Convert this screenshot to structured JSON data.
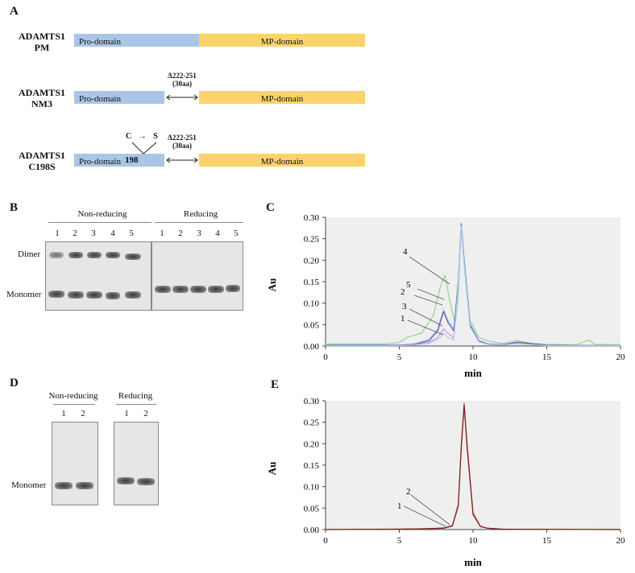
{
  "panelA": {
    "letter": "A",
    "constructs": [
      {
        "name_line1": "ADAMTS1",
        "name_line2": "PM",
        "pro_label": "Pro-domain",
        "mp_label": "MP-domain"
      },
      {
        "name_line1": "ADAMTS1",
        "name_line2": "NM3",
        "pro_label": "Pro-domain",
        "mp_label": "MP-domain",
        "deletion_line1": "Δ222-251",
        "deletion_line2": "(30aa)"
      },
      {
        "name_line1": "ADAMTS1",
        "name_line2": "C198S",
        "pro_label": "Pro-domain",
        "mp_label": "MP-domain",
        "deletion_line1": "Δ222-251",
        "deletion_line2": "(30aa)",
        "mutation_from": "C",
        "mutation_arrow": "→",
        "mutation_to": "S",
        "mutation_position": "198"
      }
    ]
  },
  "panelB": {
    "letter": "B",
    "nonreducing_title": "Non-reducing",
    "reducing_title": "Reducing",
    "lanes": [
      "1",
      "2",
      "3",
      "4",
      "5"
    ],
    "dimer_label": "Dimer",
    "monomer_label": "Monomer"
  },
  "panelD": {
    "letter": "D",
    "nonreducing_title": "Non-reducing",
    "reducing_title": "Reducing",
    "lanes": [
      "1",
      "2"
    ],
    "monomer_label": "Monomer"
  },
  "chart_data": [
    {
      "panel": "C",
      "type": "line",
      "xlabel": "min",
      "ylabel": "Au",
      "xlim": [
        0,
        20
      ],
      "ylim": [
        0,
        0.3
      ],
      "xticks": [
        "0",
        "5",
        "10",
        "15",
        "20"
      ],
      "yticks": [
        "0.00",
        "0.05",
        "0.10",
        "0.15",
        "0.20",
        "0.25",
        "0.30"
      ],
      "annotations": [
        "1",
        "2",
        "3",
        "4",
        "5"
      ],
      "series": [
        {
          "name": "4",
          "color": "#8fd68f",
          "x": [
            0,
            4,
            5,
            5.5,
            6.5,
            7.3,
            7.8,
            8.1,
            8.4,
            8.8,
            9.0,
            9.2,
            9.4,
            9.8,
            10.4,
            11,
            12,
            13,
            14,
            15,
            17,
            17.8,
            18.3,
            20
          ],
          "y": [
            0.005,
            0.005,
            0.008,
            0.02,
            0.03,
            0.07,
            0.14,
            0.165,
            0.11,
            0.05,
            0.12,
            0.28,
            0.2,
            0.06,
            0.02,
            0.012,
            0.006,
            0.013,
            0.006,
            0.004,
            0.003,
            0.014,
            0.004,
            0.003
          ]
        },
        {
          "name": "5",
          "color": "#a8c0ea",
          "x": [
            0,
            5,
            6,
            7,
            7.6,
            8.0,
            8.3,
            8.7,
            9.0,
            9.2,
            9.4,
            9.8,
            10.4,
            11,
            12,
            13,
            15,
            20
          ],
          "y": [
            0.002,
            0.002,
            0.005,
            0.015,
            0.04,
            0.085,
            0.06,
            0.04,
            0.15,
            0.285,
            0.2,
            0.05,
            0.012,
            0.005,
            0.003,
            0.008,
            0.002,
            0.001
          ]
        },
        {
          "name": "2",
          "color": "#5a5ab0",
          "x": [
            0,
            5,
            6,
            7,
            7.6,
            8.0,
            8.3,
            8.7,
            9.0,
            9.2,
            9.4,
            9.8,
            10.4,
            11,
            12,
            13,
            15,
            20
          ],
          "y": [
            0.002,
            0.002,
            0.004,
            0.012,
            0.035,
            0.08,
            0.055,
            0.035,
            0.15,
            0.285,
            0.2,
            0.05,
            0.012,
            0.005,
            0.003,
            0.009,
            0.002,
            0.001
          ]
        },
        {
          "name": "3",
          "color": "#e08ee0",
          "x": [
            0,
            5,
            6,
            7,
            7.6,
            8.0,
            8.3,
            8.7,
            9.0,
            9.2,
            9.4,
            9.8,
            10.4,
            11,
            12,
            13,
            15,
            20
          ],
          "y": [
            0.001,
            0.001,
            0.003,
            0.008,
            0.02,
            0.04,
            0.03,
            0.02,
            0.14,
            0.28,
            0.19,
            0.045,
            0.01,
            0.004,
            0.002,
            0.006,
            0.001,
            0.001
          ]
        },
        {
          "name": "1",
          "color": "#a7cfe8",
          "x": [
            0,
            5,
            6,
            7,
            7.6,
            8.0,
            8.3,
            8.7,
            9.0,
            9.2,
            9.4,
            9.8,
            10.4,
            11,
            12,
            13,
            15,
            20
          ],
          "y": [
            0.001,
            0.001,
            0.002,
            0.006,
            0.015,
            0.03,
            0.02,
            0.015,
            0.14,
            0.28,
            0.19,
            0.045,
            0.01,
            0.004,
            0.002,
            0.005,
            0.001,
            0.001
          ]
        }
      ]
    },
    {
      "panel": "E",
      "type": "line",
      "xlabel": "min",
      "ylabel": "Au",
      "xlim": [
        0,
        20
      ],
      "ylim": [
        0,
        0.3
      ],
      "xticks": [
        "0",
        "5",
        "10",
        "15",
        "20"
      ],
      "yticks": [
        "0.00",
        "0.05",
        "0.10",
        "0.15",
        "0.20",
        "0.25",
        "0.30"
      ],
      "annotations": [
        "1",
        "2"
      ],
      "series": [
        {
          "name": "2",
          "color": "#c97070",
          "x": [
            0,
            5,
            7,
            8,
            8.6,
            9.0,
            9.2,
            9.4,
            9.6,
            10.0,
            10.5,
            11,
            12,
            20
          ],
          "y": [
            0.0,
            0.001,
            0.002,
            0.004,
            0.01,
            0.06,
            0.2,
            0.295,
            0.2,
            0.04,
            0.008,
            0.003,
            0.001,
            0.0
          ]
        },
        {
          "name": "1",
          "color": "#7a1f1f",
          "x": [
            0,
            5,
            7,
            8,
            8.6,
            9.0,
            9.2,
            9.4,
            9.6,
            10.0,
            10.5,
            11,
            12,
            20
          ],
          "y": [
            0.0,
            0.001,
            0.002,
            0.003,
            0.008,
            0.055,
            0.19,
            0.29,
            0.19,
            0.035,
            0.007,
            0.003,
            0.001,
            0.0
          ]
        }
      ]
    }
  ]
}
